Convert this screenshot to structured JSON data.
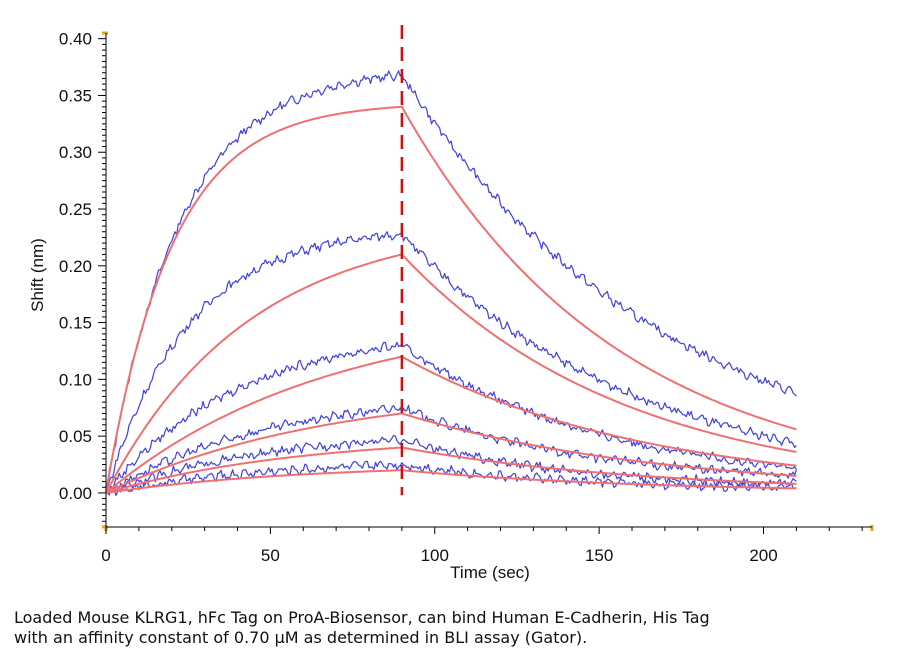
{
  "chart_data": {
    "type": "line",
    "xlabel": "Time (sec)",
    "ylabel": "Shift (nm)",
    "xlim": [
      0,
      233
    ],
    "ylim": [
      -0.03,
      0.405
    ],
    "xticks": [
      0,
      50,
      100,
      150,
      200
    ],
    "yticks": [
      0.0,
      0.05,
      0.1,
      0.15,
      0.2,
      0.25,
      0.3,
      0.35,
      0.4
    ],
    "yticklabels": [
      "0.00",
      "0.05",
      "0.10",
      "0.15",
      "0.20",
      "0.25",
      "0.30",
      "0.35",
      "0.40"
    ],
    "grid": false,
    "association_end_time": 90,
    "end_time": 210,
    "marker_line": {
      "x": 90,
      "style": "dashed",
      "color": "#cc1111"
    },
    "colors": {
      "measured": "#4040dd",
      "fit": "#f07070",
      "axis": "#000000",
      "axis_end": "#f0a020"
    },
    "series": [
      {
        "kind": "measured",
        "plateau": 0.368,
        "peak": 0.368,
        "end": 0.088,
        "kon": 0.045,
        "koff": 0.0125
      },
      {
        "kind": "measured",
        "plateau": 0.232,
        "peak": 0.228,
        "end": 0.044,
        "kon": 0.04,
        "koff": 0.014
      },
      {
        "kind": "measured",
        "plateau": 0.148,
        "peak": 0.13,
        "end": 0.022,
        "kon": 0.025,
        "koff": 0.016
      },
      {
        "kind": "measured",
        "plateau": 0.09,
        "peak": 0.075,
        "end": 0.016,
        "kon": 0.02,
        "koff": 0.018
      },
      {
        "kind": "measured",
        "plateau": 0.055,
        "peak": 0.047,
        "end": 0.008,
        "kon": 0.02,
        "koff": 0.02
      },
      {
        "kind": "measured",
        "plateau": 0.03,
        "peak": 0.025,
        "end": 0.005,
        "kon": 0.02,
        "koff": 0.02
      },
      {
        "kind": "fit",
        "plateau": 0.345,
        "peak": 0.34,
        "end": 0.056,
        "kon": 0.05,
        "koff": 0.0152
      },
      {
        "kind": "fit",
        "plateau": 0.24,
        "peak": 0.21,
        "end": 0.036,
        "kon": 0.023,
        "koff": 0.0147
      },
      {
        "kind": "fit",
        "plateau": 0.16,
        "peak": 0.12,
        "end": 0.024,
        "kon": 0.015,
        "koff": 0.0135
      },
      {
        "kind": "fit",
        "plateau": 0.095,
        "peak": 0.07,
        "end": 0.015,
        "kon": 0.015,
        "koff": 0.0128
      },
      {
        "kind": "fit",
        "plateau": 0.052,
        "peak": 0.04,
        "end": 0.008,
        "kon": 0.017,
        "koff": 0.0134
      },
      {
        "kind": "fit",
        "plateau": 0.026,
        "peak": 0.02,
        "end": 0.004,
        "kon": 0.017,
        "koff": 0.0134
      }
    ]
  },
  "caption": {
    "line1": "Loaded Mouse KLRG1, hFc Tag on ProA-Biosensor, can bind Human E-Cadherin, His Tag",
    "line2": "with an affinity constant of 0.70 μM as determined in BLI assay (Gator)."
  }
}
